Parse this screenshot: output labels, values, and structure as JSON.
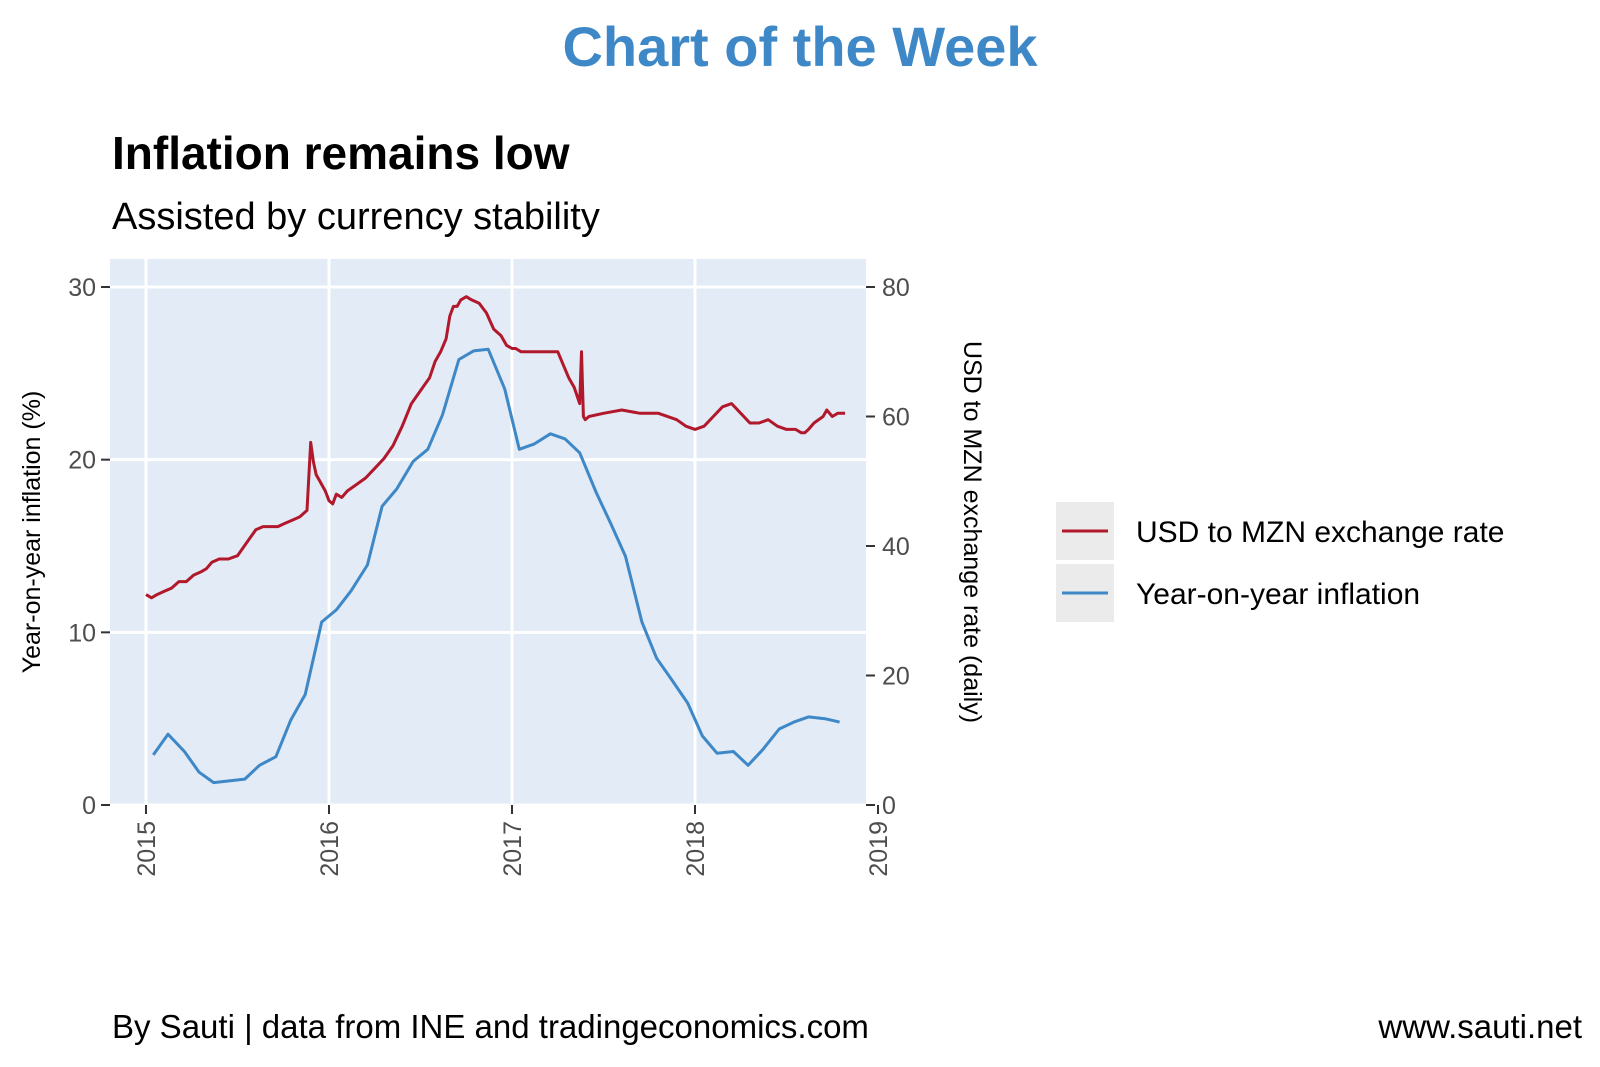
{
  "banner": {
    "text": "Chart of the Week",
    "color": "#3e88c7"
  },
  "footer": {
    "left": "By Sauti | data from INE and tradingeconomics.com",
    "right": "www.sauti.net"
  },
  "chart_data": {
    "type": "line",
    "title": "Inflation remains low",
    "subtitle": "Assisted by currency stability",
    "xlabel": "",
    "ylabel": "Year-on-year inflation (%)",
    "y2label": "USD to MZN exchange rate (daily)",
    "xlim": [
      2015,
      2019
    ],
    "ylim": [
      0,
      30
    ],
    "y2lim": [
      0,
      80
    ],
    "x_ticks": [
      2015,
      2016,
      2017,
      2018,
      2019
    ],
    "y_ticks": [
      0,
      10,
      20,
      30
    ],
    "y2_ticks": [
      0,
      20,
      40,
      60,
      80
    ],
    "panel_color": "#e2ebf6",
    "legend_position": "right",
    "series": [
      {
        "name": "USD to MZN exchange rate",
        "axis": "right",
        "color": "#b2182b",
        "x": [
          2015.0,
          2015.03,
          2015.06,
          2015.1,
          2015.14,
          2015.18,
          2015.22,
          2015.26,
          2015.3,
          2015.33,
          2015.36,
          2015.4,
          2015.45,
          2015.5,
          2015.55,
          2015.6,
          2015.64,
          2015.68,
          2015.72,
          2015.76,
          2015.8,
          2015.84,
          2015.88,
          2015.9,
          2015.915,
          2015.93,
          2015.95,
          2015.98,
          2016.0,
          2016.02,
          2016.04,
          2016.07,
          2016.1,
          2016.15,
          2016.2,
          2016.25,
          2016.3,
          2016.35,
          2016.4,
          2016.45,
          2016.5,
          2016.55,
          2016.58,
          2016.61,
          2016.64,
          2016.66,
          2016.68,
          2016.7,
          2016.72,
          2016.75,
          2016.78,
          2016.82,
          2016.86,
          2016.9,
          2016.94,
          2016.97,
          2017.0,
          2017.02,
          2017.05,
          2017.1,
          2017.15,
          2017.2,
          2017.25,
          2017.28,
          2017.31,
          2017.34,
          2017.37,
          2017.38,
          2017.39,
          2017.4,
          2017.42,
          2017.5,
          2017.6,
          2017.7,
          2017.8,
          2017.9,
          2017.95,
          2018.0,
          2018.05,
          2018.1,
          2018.15,
          2018.2,
          2018.25,
          2018.3,
          2018.35,
          2018.4,
          2018.45,
          2018.5,
          2018.55,
          2018.58,
          2018.6,
          2018.62,
          2018.65,
          2018.7,
          2018.72,
          2018.75,
          2018.78,
          2018.82
        ],
        "y": [
          32.5,
          32.0,
          32.5,
          33.0,
          33.5,
          34.5,
          34.5,
          35.5,
          36.0,
          36.5,
          37.5,
          38.0,
          38.0,
          38.5,
          40.5,
          42.5,
          43.0,
          43.0,
          43.0,
          43.5,
          44.0,
          44.5,
          45.5,
          56.0,
          53.0,
          51.0,
          50.0,
          48.5,
          47.0,
          46.5,
          48.0,
          47.5,
          48.5,
          49.5,
          50.5,
          52.0,
          53.5,
          55.5,
          58.5,
          62.0,
          64.0,
          66.0,
          68.5,
          70.0,
          72.0,
          75.5,
          77.0,
          77.0,
          78.0,
          78.5,
          78.0,
          77.5,
          76.0,
          73.5,
          72.5,
          71.0,
          70.5,
          70.5,
          70.0,
          70.0,
          70.0,
          70.0,
          70.0,
          68.0,
          66.0,
          64.5,
          62.0,
          70.0,
          60.0,
          59.5,
          60.0,
          60.5,
          61.0,
          60.5,
          60.5,
          59.5,
          58.5,
          58.0,
          58.5,
          60.0,
          61.5,
          62.0,
          60.5,
          59.0,
          59.0,
          59.5,
          58.5,
          58.0,
          58.0,
          57.5,
          57.5,
          58.0,
          59.0,
          60.0,
          61.0,
          60.0,
          60.5,
          60.5
        ]
      },
      {
        "name": "Year-on-year inflation",
        "axis": "left",
        "color": "#3e88c7",
        "x": [
          2015.04,
          2015.12,
          2015.21,
          2015.29,
          2015.37,
          2015.46,
          2015.54,
          2015.62,
          2015.71,
          2015.79,
          2015.87,
          2015.96,
          2016.04,
          2016.12,
          2016.21,
          2016.29,
          2016.37,
          2016.46,
          2016.54,
          2016.62,
          2016.71,
          2016.79,
          2016.87,
          2016.96,
          2017.04,
          2017.12,
          2017.21,
          2017.29,
          2017.37,
          2017.46,
          2017.54,
          2017.62,
          2017.71,
          2017.79,
          2017.87,
          2017.96,
          2018.04,
          2018.12,
          2018.21,
          2018.29,
          2018.37,
          2018.46,
          2018.54,
          2018.62,
          2018.71,
          2018.79
        ],
        "y": [
          2.9,
          4.1,
          3.1,
          1.9,
          1.3,
          1.4,
          1.5,
          2.3,
          2.8,
          4.9,
          6.4,
          10.6,
          11.3,
          12.4,
          13.9,
          17.3,
          18.3,
          19.9,
          20.6,
          22.6,
          25.8,
          26.3,
          26.4,
          24.1,
          20.6,
          20.9,
          21.5,
          21.2,
          20.4,
          18.1,
          16.3,
          14.4,
          10.6,
          8.5,
          7.3,
          5.9,
          4.0,
          3.0,
          3.1,
          2.3,
          3.2,
          4.4,
          4.8,
          5.1,
          5.0,
          4.8
        ]
      }
    ]
  }
}
